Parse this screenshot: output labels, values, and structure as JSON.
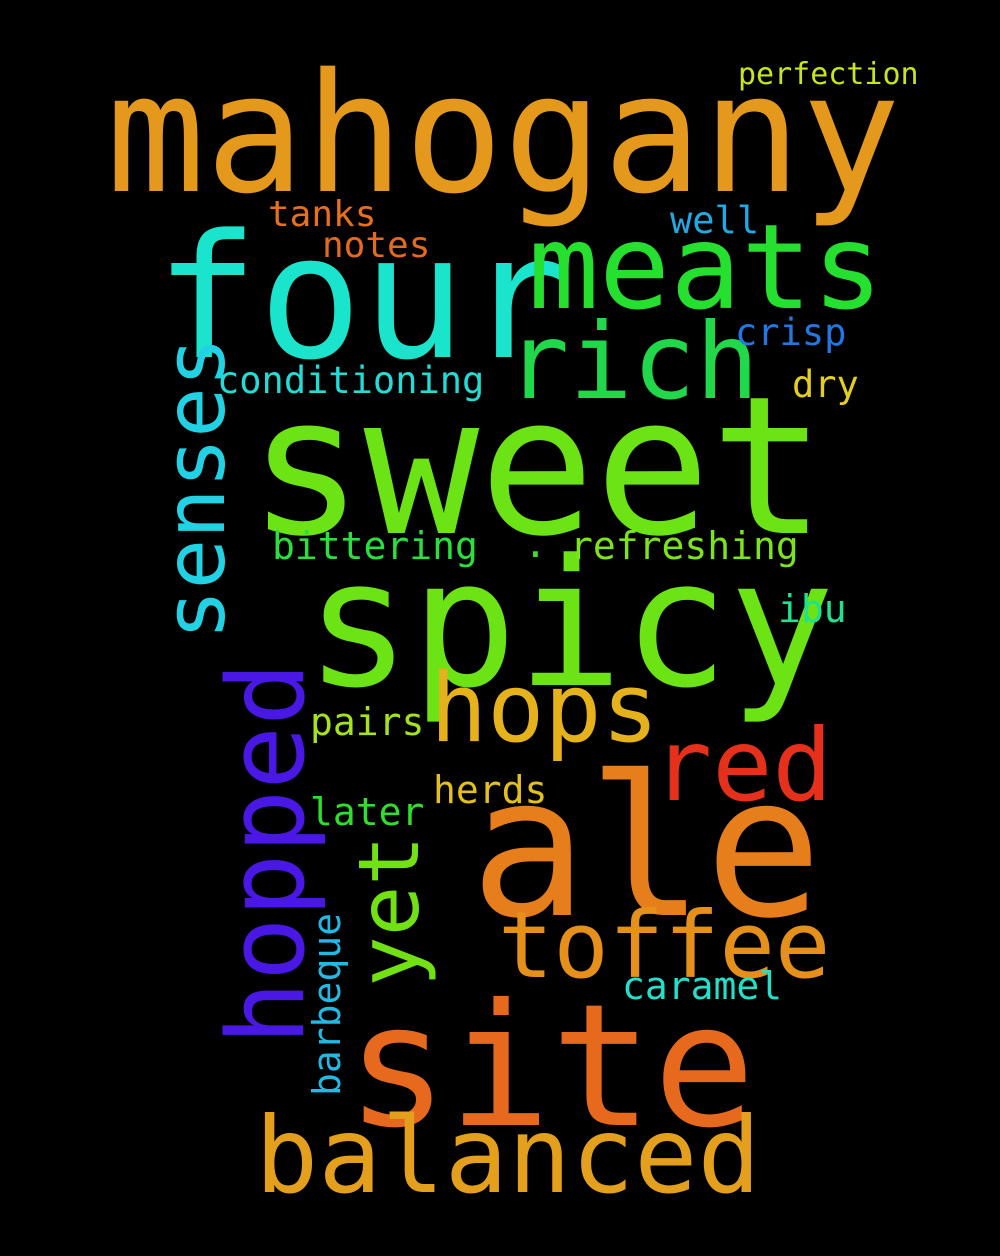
{
  "words": {
    "mahogany": {
      "text": "mahogany",
      "color": "#E4981C"
    },
    "four": {
      "text": "four",
      "color": "#1BE4CD"
    },
    "meats": {
      "text": "meats",
      "color": "#25E02E"
    },
    "rich": {
      "text": "rich",
      "color": "#20D84A"
    },
    "sweet": {
      "text": "sweet",
      "color": "#6BE314"
    },
    "spicy": {
      "text": "spicy",
      "color": "#6BE314"
    },
    "hops": {
      "text": "hops",
      "color": "#E5B21C"
    },
    "red": {
      "text": "red",
      "color": "#E5301B"
    },
    "ale": {
      "text": "ale",
      "color": "#E77E1C"
    },
    "toffee": {
      "text": "toffee",
      "color": "#E6901C"
    },
    "site": {
      "text": "site",
      "color": "#E6691D"
    },
    "balanced": {
      "text": "balanced",
      "color": "#E4A01C"
    },
    "senses": {
      "text": "senses",
      "color": "#22D2E4"
    },
    "hopped": {
      "text": "hopped",
      "color": "#4A18E4"
    },
    "yet": {
      "text": "yet",
      "color": "#72E114"
    },
    "barbeque": {
      "text": "barbeque",
      "color": "#22B9E4"
    },
    "perfection": {
      "text": "perfection",
      "color": "#C7E41C"
    },
    "tanks": {
      "text": "tanks",
      "color": "#E6701C"
    },
    "well": {
      "text": "well",
      "color": "#21A9E4"
    },
    "notes": {
      "text": "notes",
      "color": "#E66A1D"
    },
    "crisp": {
      "text": "crisp",
      "color": "#2177E4"
    },
    "conditioning": {
      "text": "conditioning",
      "color": "#22DCD6"
    },
    "dry": {
      "text": "dry",
      "color": "#E4D01C"
    },
    "bittering": {
      "text": "bittering",
      "color": "#29E03E"
    },
    "dot": {
      "text": ".",
      "color": "#3DE02A"
    },
    "refreshing": {
      "text": "refreshing",
      "color": "#7DE41C"
    },
    "ibu": {
      "text": "ibu",
      "color": "#1EE28E"
    },
    "pairs": {
      "text": "pairs",
      "color": "#A5E41C"
    },
    "herds": {
      "text": "herds",
      "color": "#E4C01C"
    },
    "later": {
      "text": "later",
      "color": "#2EE02B"
    },
    "caramel": {
      "text": "caramel",
      "color": "#22E0C9"
    }
  }
}
